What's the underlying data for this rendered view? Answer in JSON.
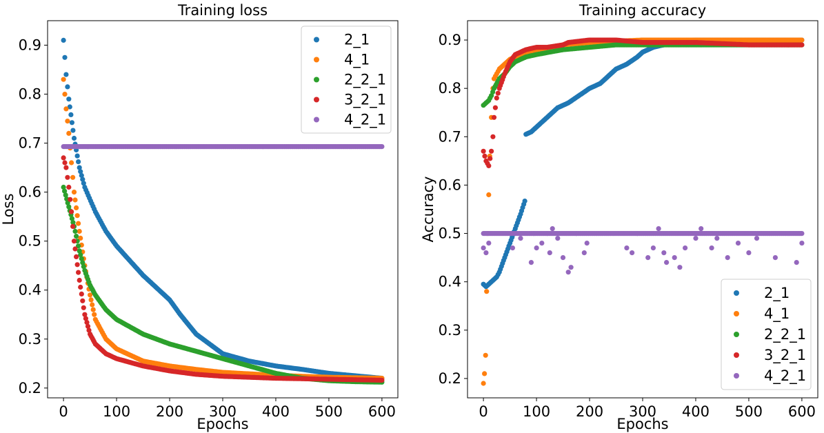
{
  "chart_data": [
    {
      "type": "scatter",
      "title": "Training loss",
      "xlabel": "Epochs",
      "ylabel": "Loss",
      "xlim": [
        -30,
        630
      ],
      "ylim": [
        0.18,
        0.95
      ],
      "xticks": [
        0,
        100,
        200,
        300,
        400,
        500,
        600
      ],
      "yticks": [
        0.2,
        0.3,
        0.4,
        0.5,
        0.6,
        0.7,
        0.8,
        0.9
      ],
      "xtick_labels": [
        "0",
        "100",
        "200",
        "300",
        "400",
        "500",
        "600"
      ],
      "ytick_labels": [
        "0.2",
        "0.3",
        "0.4",
        "0.5",
        "0.6",
        "0.7",
        "0.8",
        "0.9"
      ],
      "legend_position": "top-right",
      "grid": false,
      "series": [
        {
          "name": "2_1",
          "color": "#1f77b4",
          "x": [
            0,
            5,
            10,
            20,
            30,
            40,
            60,
            80,
            100,
            150,
            200,
            220,
            250,
            300,
            350,
            400,
            450,
            500,
            550,
            600
          ],
          "y": [
            0.91,
            0.84,
            0.79,
            0.71,
            0.65,
            0.61,
            0.56,
            0.52,
            0.49,
            0.43,
            0.38,
            0.35,
            0.31,
            0.27,
            0.255,
            0.245,
            0.238,
            0.23,
            0.225,
            0.22
          ]
        },
        {
          "name": "4_1",
          "color": "#ff7f0e",
          "x": [
            0,
            5,
            10,
            15,
            20,
            30,
            40,
            50,
            60,
            80,
            100,
            150,
            200,
            250,
            300,
            400,
            500,
            600
          ],
          "y": [
            0.83,
            0.77,
            0.72,
            0.66,
            0.6,
            0.52,
            0.45,
            0.39,
            0.34,
            0.3,
            0.28,
            0.255,
            0.245,
            0.238,
            0.232,
            0.226,
            0.222,
            0.22
          ]
        },
        {
          "name": "2_2_1",
          "color": "#2ca02c",
          "x": [
            0,
            10,
            20,
            30,
            40,
            50,
            60,
            80,
            100,
            150,
            200,
            250,
            300,
            350,
            400,
            450,
            500,
            550,
            600
          ],
          "y": [
            0.61,
            0.57,
            0.53,
            0.48,
            0.44,
            0.41,
            0.39,
            0.36,
            0.34,
            0.31,
            0.29,
            0.275,
            0.26,
            0.245,
            0.23,
            0.22,
            0.215,
            0.213,
            0.212
          ]
        },
        {
          "name": "3_2_1",
          "color": "#d62728",
          "x": [
            0,
            5,
            10,
            15,
            20,
            30,
            40,
            50,
            60,
            80,
            100,
            150,
            200,
            250,
            300,
            400,
            500,
            600
          ],
          "y": [
            0.67,
            0.65,
            0.61,
            0.56,
            0.5,
            0.42,
            0.35,
            0.31,
            0.29,
            0.27,
            0.26,
            0.245,
            0.235,
            0.228,
            0.224,
            0.22,
            0.218,
            0.216
          ]
        },
        {
          "name": "4_2_1",
          "color": "#9467bd",
          "x": [
            0,
            600
          ],
          "y": [
            0.693,
            0.693
          ],
          "constant": true
        }
      ]
    },
    {
      "type": "scatter",
      "title": "Training accuracy",
      "xlabel": "Epochs",
      "ylabel": "Accuracy",
      "xlim": [
        -30,
        630
      ],
      "ylim": [
        0.16,
        0.94
      ],
      "xticks": [
        0,
        100,
        200,
        300,
        400,
        500,
        600
      ],
      "yticks": [
        0.2,
        0.3,
        0.4,
        0.5,
        0.6,
        0.7,
        0.8,
        0.9
      ],
      "xtick_labels": [
        "0",
        "100",
        "200",
        "300",
        "400",
        "500",
        "600"
      ],
      "ytick_labels": [
        "0.2",
        "0.3",
        "0.4",
        "0.5",
        "0.6",
        "0.7",
        "0.8",
        "0.9"
      ],
      "legend_position": "lower-right",
      "grid": false,
      "series": [
        {
          "name": "2_1",
          "color": "#1f77b4",
          "x": [
            0,
            5,
            10,
            15,
            20,
            25,
            30,
            40,
            50,
            60,
            70,
            78,
            80,
            90,
            100,
            120,
            140,
            160,
            180,
            200,
            220,
            250,
            270,
            290,
            300,
            310,
            320,
            340,
            360,
            400,
            450,
            500,
            550,
            600
          ],
          "y": [
            0.395,
            0.39,
            0.395,
            0.4,
            0.405,
            0.41,
            0.42,
            0.45,
            0.48,
            0.51,
            0.54,
            0.567,
            0.705,
            0.71,
            0.72,
            0.74,
            0.76,
            0.77,
            0.785,
            0.8,
            0.81,
            0.84,
            0.85,
            0.865,
            0.875,
            0.88,
            0.885,
            0.89,
            0.895,
            0.9,
            0.9,
            0.9,
            0.9,
            0.9
          ]
        },
        {
          "name": "4_1",
          "color": "#ff7f0e",
          "x": [
            0,
            2,
            4,
            6,
            8,
            10,
            12,
            15,
            18,
            20,
            25,
            30,
            40,
            50,
            60,
            80,
            100,
            150,
            200,
            300,
            400,
            500,
            600
          ],
          "y": [
            0.19,
            0.21,
            0.248,
            0.38,
            0.5,
            0.58,
            0.66,
            0.74,
            0.8,
            0.82,
            0.83,
            0.84,
            0.85,
            0.86,
            0.865,
            0.87,
            0.88,
            0.89,
            0.895,
            0.9,
            0.9,
            0.9,
            0.9
          ]
        },
        {
          "name": "2_2_1",
          "color": "#2ca02c",
          "x": [
            0,
            5,
            10,
            15,
            20,
            30,
            40,
            50,
            60,
            80,
            100,
            150,
            200,
            250,
            300,
            400,
            500,
            600
          ],
          "y": [
            0.765,
            0.77,
            0.775,
            0.785,
            0.8,
            0.82,
            0.83,
            0.845,
            0.855,
            0.865,
            0.87,
            0.88,
            0.885,
            0.89,
            0.89,
            0.89,
            0.89,
            0.89
          ]
        },
        {
          "name": "3_2_1",
          "color": "#d62728",
          "x": [
            0,
            5,
            10,
            15,
            18,
            20,
            25,
            30,
            40,
            50,
            60,
            80,
            100,
            120,
            150,
            160,
            200,
            250,
            300,
            400,
            500,
            600
          ],
          "y": [
            0.67,
            0.65,
            0.64,
            0.67,
            0.7,
            0.74,
            0.78,
            0.8,
            0.83,
            0.855,
            0.87,
            0.88,
            0.885,
            0.885,
            0.89,
            0.895,
            0.9,
            0.9,
            0.895,
            0.895,
            0.89,
            0.89
          ]
        },
        {
          "name": "4_2_1",
          "color": "#9467bd",
          "x": [
            0,
            600
          ],
          "y": [
            0.5,
            0.5
          ],
          "constant": true,
          "scatter_points": [
            [
              0,
              0.47
            ],
            [
              5,
              0.46
            ],
            [
              10,
              0.48
            ],
            [
              55,
              0.47
            ],
            [
              70,
              0.49
            ],
            [
              90,
              0.44
            ],
            [
              95,
              0.5
            ],
            [
              100,
              0.47
            ],
            [
              110,
              0.48
            ],
            [
              120,
              0.5
            ],
            [
              125,
              0.46
            ],
            [
              130,
              0.51
            ],
            [
              140,
              0.49
            ],
            [
              150,
              0.45
            ],
            [
              160,
              0.42
            ],
            [
              165,
              0.43
            ],
            [
              175,
              0.5
            ],
            [
              190,
              0.46
            ],
            [
              195,
              0.48
            ],
            [
              270,
              0.47
            ],
            [
              280,
              0.46
            ],
            [
              290,
              0.5
            ],
            [
              310,
              0.45
            ],
            [
              320,
              0.47
            ],
            [
              330,
              0.51
            ],
            [
              340,
              0.46
            ],
            [
              345,
              0.44
            ],
            [
              360,
              0.45
            ],
            [
              370,
              0.43
            ],
            [
              380,
              0.47
            ],
            [
              400,
              0.49
            ],
            [
              410,
              0.51
            ],
            [
              430,
              0.47
            ],
            [
              440,
              0.49
            ],
            [
              460,
              0.45
            ],
            [
              480,
              0.48
            ],
            [
              500,
              0.46
            ],
            [
              515,
              0.49
            ],
            [
              550,
              0.45
            ],
            [
              590,
              0.44
            ],
            [
              600,
              0.48
            ]
          ]
        }
      ]
    }
  ]
}
